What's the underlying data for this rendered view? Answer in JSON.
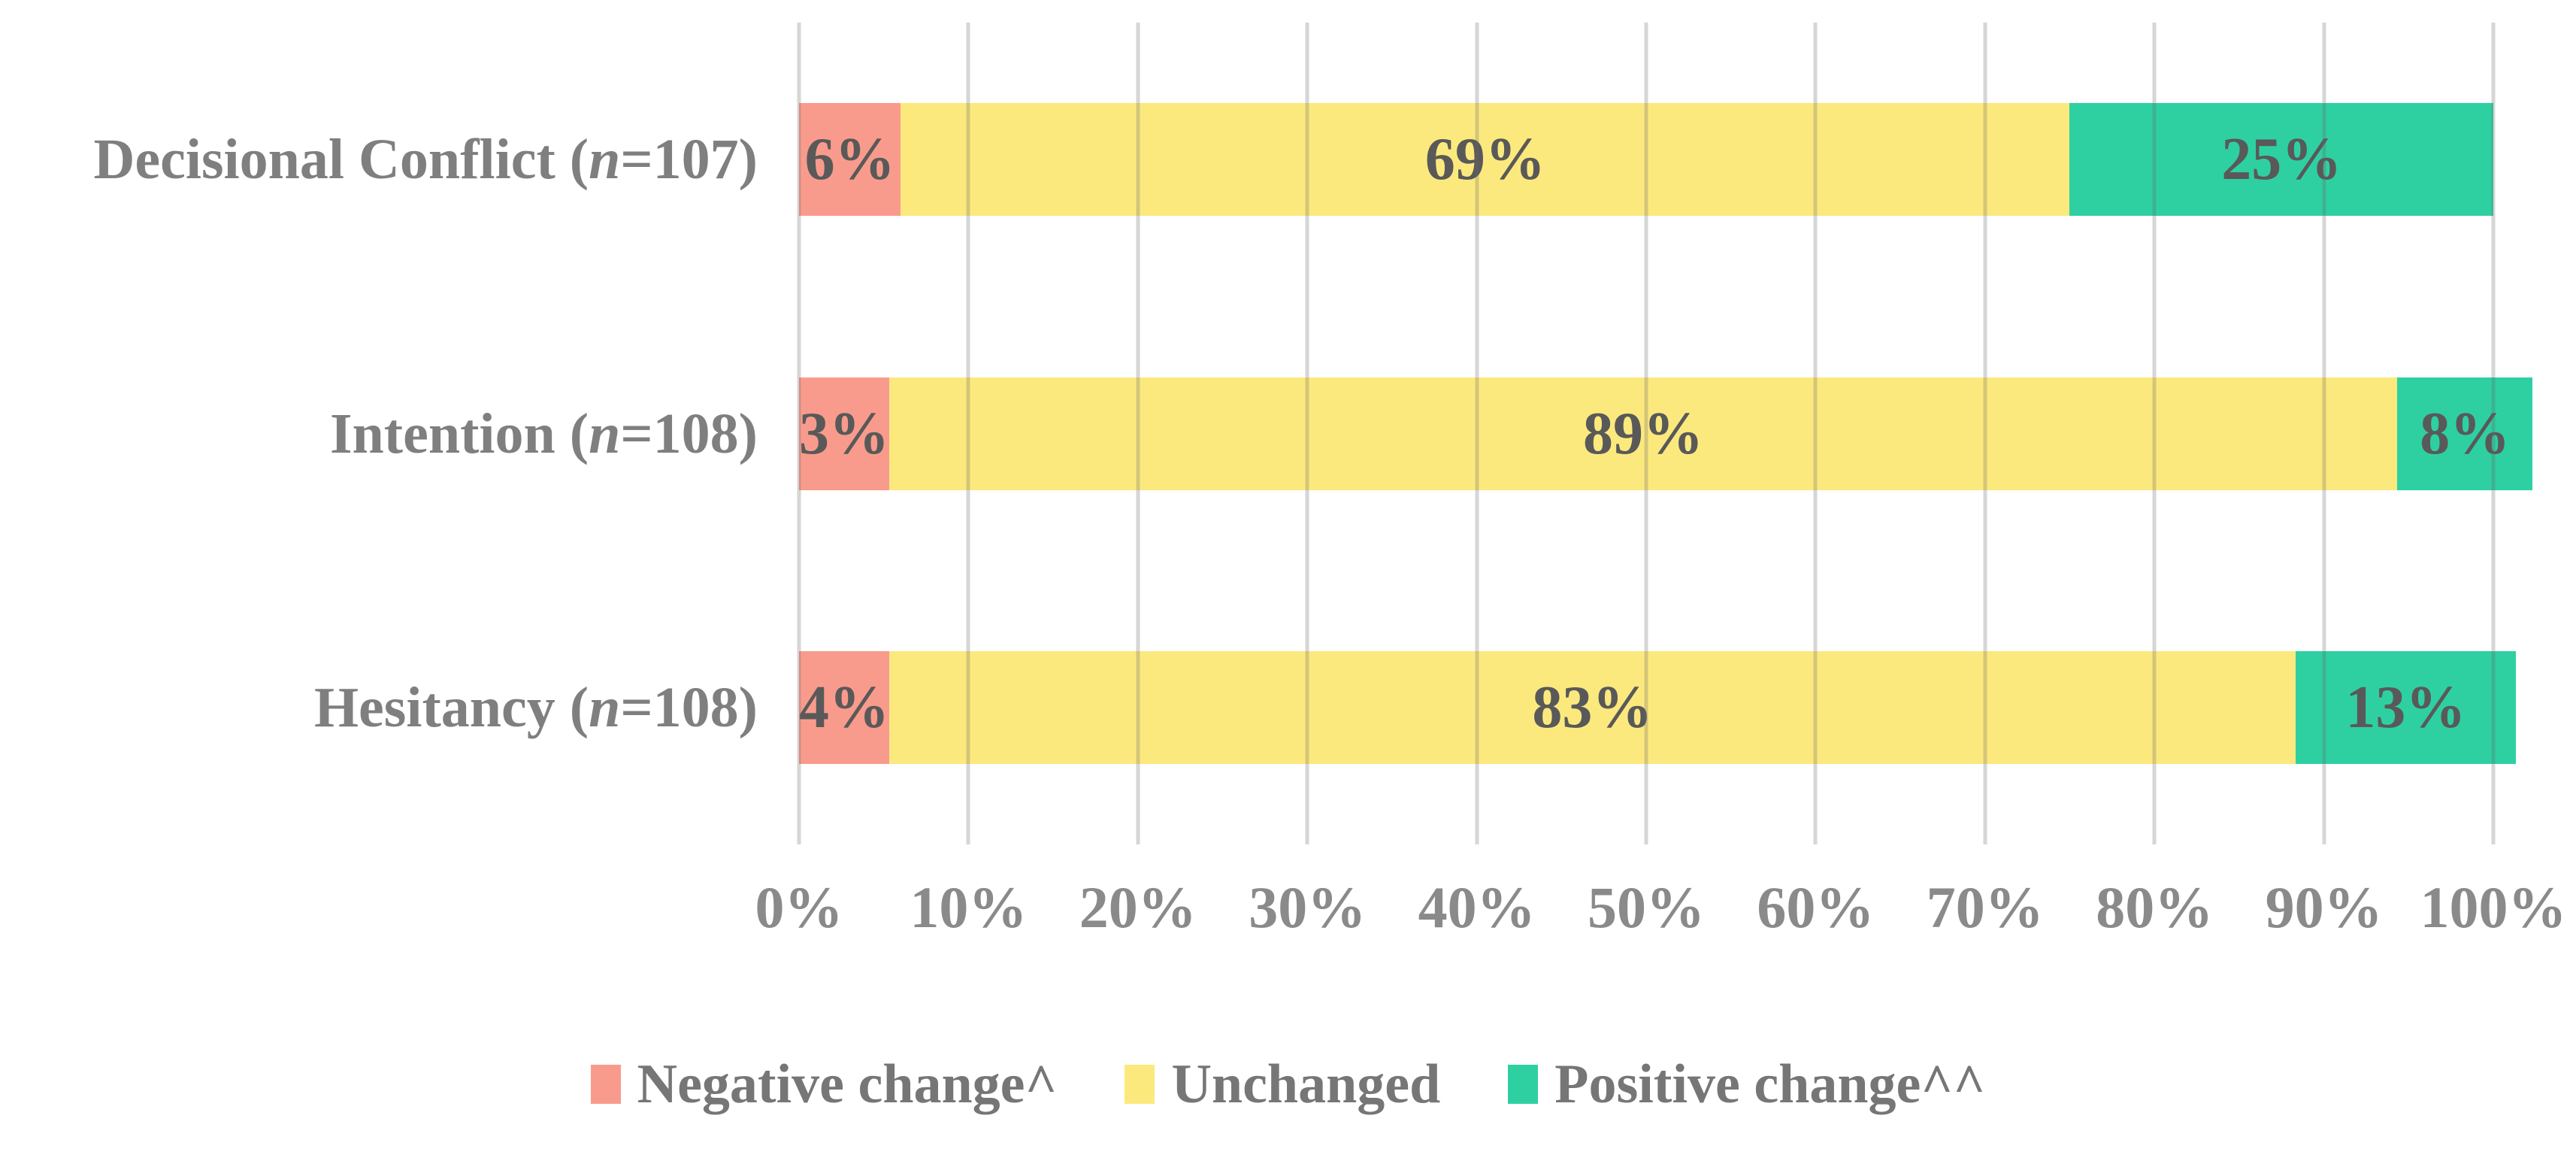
{
  "chart_data": {
    "type": "bar",
    "orientation": "horizontal",
    "stacked": true,
    "unit": "%",
    "xlim": [
      0,
      100
    ],
    "grid": true,
    "legend_position": "bottom",
    "x_ticks": [
      "0%",
      "10%",
      "20%",
      "30%",
      "40%",
      "50%",
      "60%",
      "70%",
      "80%",
      "90%",
      "100%"
    ],
    "categories": [
      {
        "text": "Decisional Conflict (n=107)",
        "prefix": "Decisional Conflict (",
        "n_italic": "n",
        "suffix": "=107)"
      },
      {
        "text": "Intention (n=108)",
        "prefix": "Intention (",
        "n_italic": "n",
        "suffix": "=108)"
      },
      {
        "text": "Hesitancy (n=108)",
        "prefix": "Hesitancy (",
        "n_italic": "n",
        "suffix": "=108)"
      }
    ],
    "series": [
      {
        "name": "Negative change^",
        "color": "#F99B8C",
        "values": [
          6,
          3,
          4
        ],
        "labels": [
          "6%",
          "3%",
          "4%"
        ]
      },
      {
        "name": "Unchanged",
        "color": "#FCE97E",
        "values": [
          69,
          89,
          83
        ],
        "labels": [
          "69%",
          "89%",
          "83%"
        ]
      },
      {
        "name": "Positive change^^",
        "color": "#2ED0A2",
        "values": [
          25,
          8,
          13
        ],
        "labels": [
          "25%",
          "8%",
          "13%"
        ]
      }
    ]
  },
  "colors": {
    "background": "#FFFFFF",
    "gridline": "#D9D9D9",
    "data_label": "#595959",
    "category_label": "#7F7F7F",
    "tick_label": "#8A8A8A",
    "legend_label": "#767676"
  }
}
